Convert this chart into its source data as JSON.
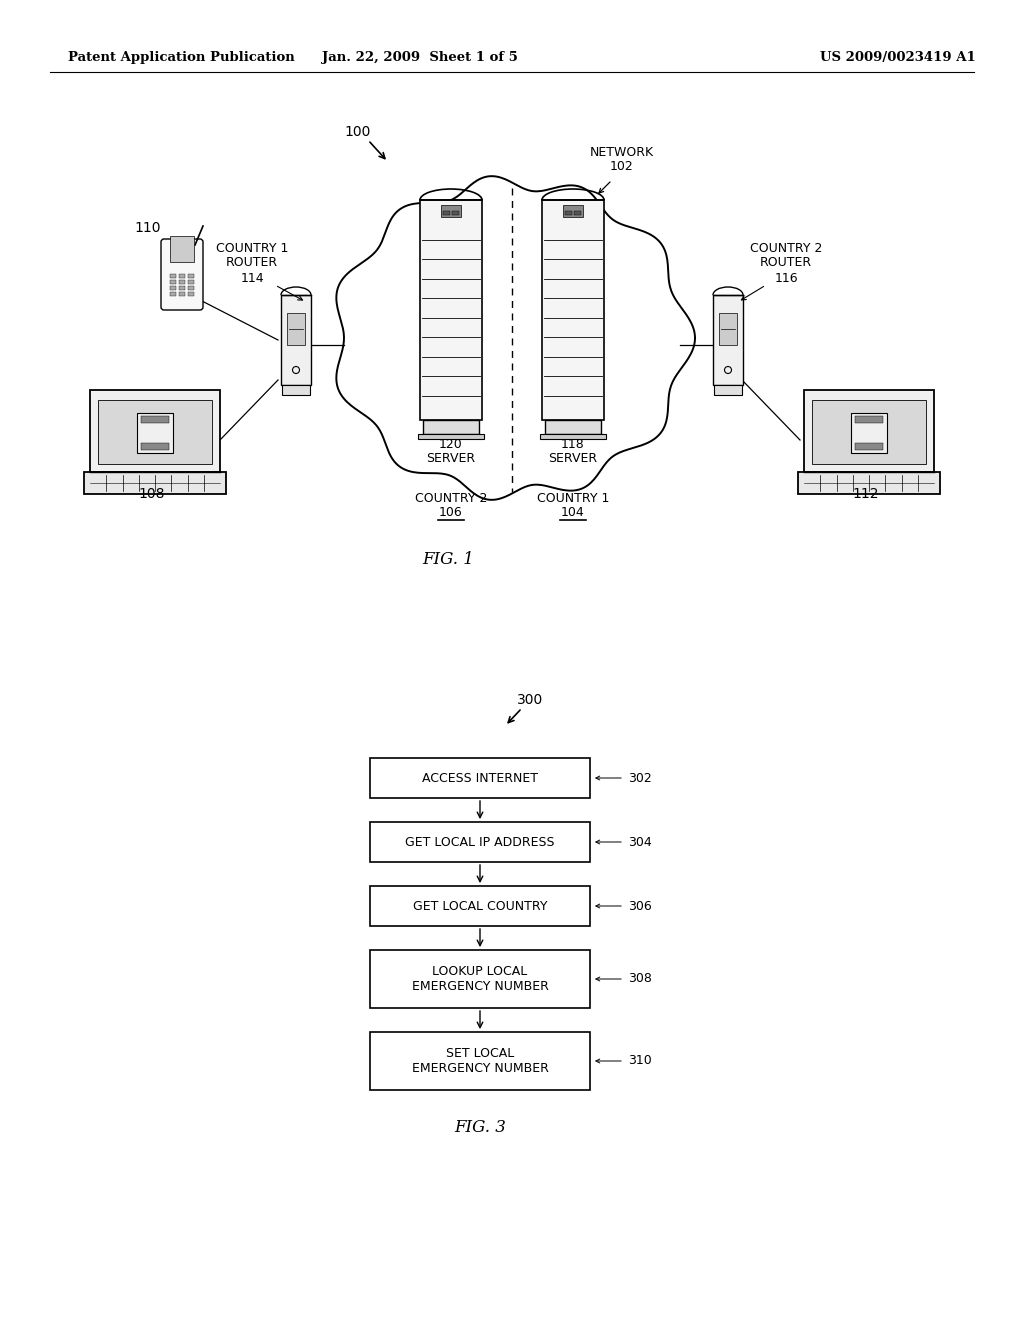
{
  "header_left": "Patent Application Publication",
  "header_mid": "Jan. 22, 2009  Sheet 1 of 5",
  "header_right": "US 2009/0023419 A1",
  "fig1_label": "FIG. 1",
  "fig3_label": "FIG. 3",
  "fig1_ref": "100",
  "network_label": "NETWORK\n102",
  "country1_router_label": "COUNTRY 1\nROUTER\n114",
  "country2_router_label": "COUNTRY 2\nROUTER\n116",
  "server120_label": "120\nSERVER",
  "server118_label": "118\nSERVER",
  "phone1_label": "110",
  "laptop1_label": "108",
  "laptop2_label": "112",
  "country1_ref": "104",
  "country2_ref": "106",
  "fig3_ref": "300",
  "flowchart_steps": [
    {
      "label": "ACCESS INTERNET",
      "ref": "302"
    },
    {
      "label": "GET LOCAL IP ADDRESS",
      "ref": "304"
    },
    {
      "label": "GET LOCAL COUNTRY",
      "ref": "306"
    },
    {
      "label": "LOOKUP LOCAL\nEMERGENCY NUMBER",
      "ref": "308"
    },
    {
      "label": "SET LOCAL\nEMERGENCY NUMBER",
      "ref": "310"
    }
  ],
  "bg_color": "#ffffff",
  "line_color": "#000000",
  "text_color": "#000000"
}
